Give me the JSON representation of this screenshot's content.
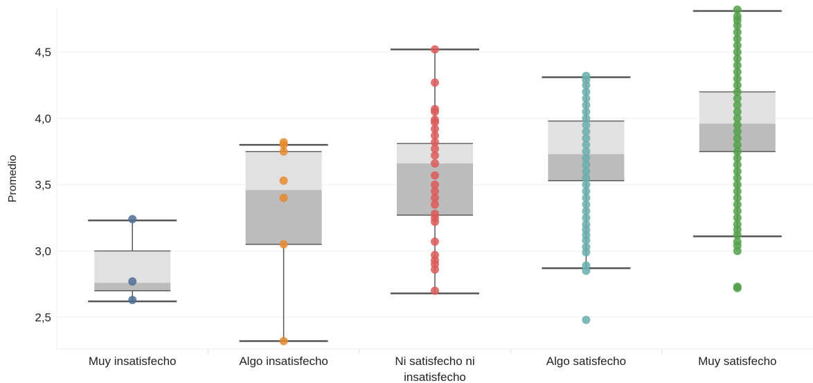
{
  "chart_data": {
    "type": "box",
    "xlabel": "",
    "ylabel": "Promedio",
    "ylim": [
      2.26,
      4.83
    ],
    "yticks": [
      {
        "value": 2.5,
        "label": "2,5"
      },
      {
        "value": 3.0,
        "label": "3,0"
      },
      {
        "value": 3.5,
        "label": "3,5"
      },
      {
        "value": 4.0,
        "label": "4,0"
      },
      {
        "value": 4.5,
        "label": "4,5"
      }
    ],
    "grid": "horizontal",
    "categories": [
      {
        "lines": [
          "Muy insatisfecho"
        ],
        "color": "#4e6d96",
        "whisker_low": 2.62,
        "q1": 2.7,
        "median": 2.76,
        "q3": 3.0,
        "whisker_high": 3.23,
        "points": [
          2.63,
          2.77,
          3.24
        ]
      },
      {
        "lines": [
          "Algo insatisfecho"
        ],
        "color": "#e68a2e",
        "whisker_low": 2.32,
        "q1": 3.05,
        "median": 3.46,
        "q3": 3.75,
        "whisker_high": 3.8,
        "points": [
          2.32,
          3.05,
          3.4,
          3.53,
          3.75,
          3.8,
          3.82
        ]
      },
      {
        "lines": [
          "Ni satisfecho ni",
          "insatisfecho"
        ],
        "color": "#dc5a5a",
        "whisker_low": 2.68,
        "q1": 3.27,
        "median": 3.66,
        "q3": 3.81,
        "whisker_high": 4.52,
        "points": [
          2.7,
          2.86,
          2.9,
          2.93,
          2.97,
          3.07,
          3.22,
          3.25,
          3.28,
          3.35,
          3.4,
          3.45,
          3.5,
          3.57,
          3.66,
          3.72,
          3.77,
          3.82,
          3.87,
          3.92,
          3.97,
          3.99,
          4.05,
          4.07,
          4.27,
          4.52
        ]
      },
      {
        "lines": [
          "Algo satisfecho"
        ],
        "color": "#6aaeac",
        "whisker_low": 2.87,
        "q1": 3.53,
        "median": 3.73,
        "q3": 3.98,
        "whisker_high": 4.31,
        "points": [
          2.48,
          2.85,
          2.89,
          2.99,
          3.03,
          3.08,
          3.12,
          3.16,
          3.2,
          3.25,
          3.3,
          3.35,
          3.4,
          3.45,
          3.5,
          3.55,
          3.6,
          3.65,
          3.7,
          3.75,
          3.8,
          3.85,
          3.9,
          3.95,
          4.0,
          4.05,
          4.1,
          4.15,
          4.2,
          4.25,
          4.29,
          4.32
        ]
      },
      {
        "lines": [
          "Muy satisfecho"
        ],
        "color": "#54a04a",
        "whisker_low": 3.11,
        "q1": 3.75,
        "median": 3.96,
        "q3": 4.2,
        "whisker_high": 4.81,
        "points": [
          2.72,
          2.73,
          3.0,
          3.04,
          3.07,
          3.12,
          3.16,
          3.2,
          3.25,
          3.3,
          3.35,
          3.4,
          3.45,
          3.5,
          3.55,
          3.6,
          3.65,
          3.7,
          3.75,
          3.8,
          3.85,
          3.9,
          3.95,
          4.0,
          4.05,
          4.1,
          4.15,
          4.2,
          4.25,
          4.3,
          4.35,
          4.4,
          4.45,
          4.5,
          4.55,
          4.6,
          4.65,
          4.7,
          4.74,
          4.77,
          4.82
        ]
      }
    ]
  }
}
